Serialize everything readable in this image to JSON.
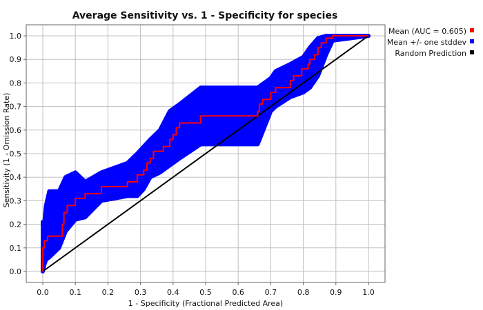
{
  "chart_data": {
    "type": "line",
    "title": "Average Sensitivity vs. 1 - Specificity for species",
    "xlabel": "1 - Specificity (Fractional Predicted Area)",
    "ylabel": "Sensitivity (1 - Omission Rate)",
    "xlim": [
      0.0,
      1.0
    ],
    "ylim": [
      0.0,
      1.0
    ],
    "xticks": [
      "0.0",
      "0.1",
      "0.2",
      "0.3",
      "0.4",
      "0.5",
      "0.6",
      "0.7",
      "0.8",
      "0.9",
      "1.0"
    ],
    "yticks": [
      "0.0",
      "0.1",
      "0.2",
      "0.3",
      "0.4",
      "0.5",
      "0.6",
      "0.7",
      "0.8",
      "0.9",
      "1.0"
    ],
    "grid": true,
    "legend_position": "right",
    "colors": {
      "mean": "#ff0000",
      "band": "#0000ff",
      "random": "#000000",
      "grid": "#c0c0c0"
    },
    "series": [
      {
        "name": "Mean (AUC = 0.605)",
        "kind": "mean",
        "x": [
          0.0,
          0.0,
          0.005,
          0.005,
          0.015,
          0.015,
          0.06,
          0.06,
          0.065,
          0.065,
          0.075,
          0.075,
          0.1,
          0.1,
          0.13,
          0.13,
          0.18,
          0.18,
          0.26,
          0.26,
          0.29,
          0.29,
          0.31,
          0.31,
          0.32,
          0.32,
          0.33,
          0.33,
          0.34,
          0.34,
          0.37,
          0.37,
          0.39,
          0.39,
          0.4,
          0.4,
          0.41,
          0.41,
          0.42,
          0.42,
          0.485,
          0.485,
          0.66,
          0.66,
          0.665,
          0.665,
          0.675,
          0.675,
          0.7,
          0.7,
          0.715,
          0.715,
          0.76,
          0.76,
          0.77,
          0.77,
          0.795,
          0.795,
          0.815,
          0.815,
          0.82,
          0.82,
          0.835,
          0.835,
          0.845,
          0.845,
          0.855,
          0.855,
          0.87,
          0.87,
          0.89,
          0.89,
          1.0
        ],
        "y": [
          0.0,
          0.1,
          0.1,
          0.13,
          0.13,
          0.15,
          0.15,
          0.2,
          0.2,
          0.25,
          0.25,
          0.28,
          0.28,
          0.31,
          0.31,
          0.33,
          0.33,
          0.36,
          0.36,
          0.38,
          0.38,
          0.41,
          0.41,
          0.43,
          0.43,
          0.46,
          0.46,
          0.48,
          0.48,
          0.51,
          0.51,
          0.53,
          0.53,
          0.56,
          0.56,
          0.58,
          0.58,
          0.61,
          0.61,
          0.63,
          0.63,
          0.66,
          0.66,
          0.68,
          0.68,
          0.71,
          0.71,
          0.73,
          0.73,
          0.76,
          0.76,
          0.78,
          0.78,
          0.81,
          0.81,
          0.83,
          0.83,
          0.86,
          0.86,
          0.88,
          0.88,
          0.9,
          0.9,
          0.92,
          0.92,
          0.95,
          0.95,
          0.97,
          0.97,
          0.99,
          0.99,
          1.0,
          1.0
        ]
      },
      {
        "name": "Mean +/- one stddev",
        "kind": "band",
        "x": [
          0.0,
          0.005,
          0.01,
          0.02,
          0.05,
          0.07,
          0.1,
          0.13,
          0.18,
          0.26,
          0.29,
          0.31,
          0.33,
          0.36,
          0.39,
          0.42,
          0.485,
          0.66,
          0.7,
          0.715,
          0.76,
          0.8,
          0.82,
          0.845,
          0.87,
          0.89,
          1.0
        ],
        "upper": [
          0.21,
          0.21,
          0.28,
          0.34,
          0.34,
          0.4,
          0.42,
          0.38,
          0.42,
          0.46,
          0.5,
          0.53,
          0.56,
          0.6,
          0.68,
          0.71,
          0.78,
          0.78,
          0.82,
          0.85,
          0.88,
          0.91,
          0.95,
          0.99,
          1.0,
          1.0,
          1.0
        ],
        "lower": [
          0.0,
          0.03,
          0.05,
          0.06,
          0.1,
          0.17,
          0.22,
          0.23,
          0.3,
          0.32,
          0.32,
          0.35,
          0.4,
          0.42,
          0.45,
          0.48,
          0.54,
          0.54,
          0.68,
          0.7,
          0.74,
          0.76,
          0.78,
          0.83,
          0.92,
          0.98,
          1.0
        ]
      },
      {
        "name": "Random Prediction",
        "kind": "random",
        "x": [
          0.0,
          1.0
        ],
        "y": [
          0.0,
          1.0
        ]
      }
    ]
  }
}
